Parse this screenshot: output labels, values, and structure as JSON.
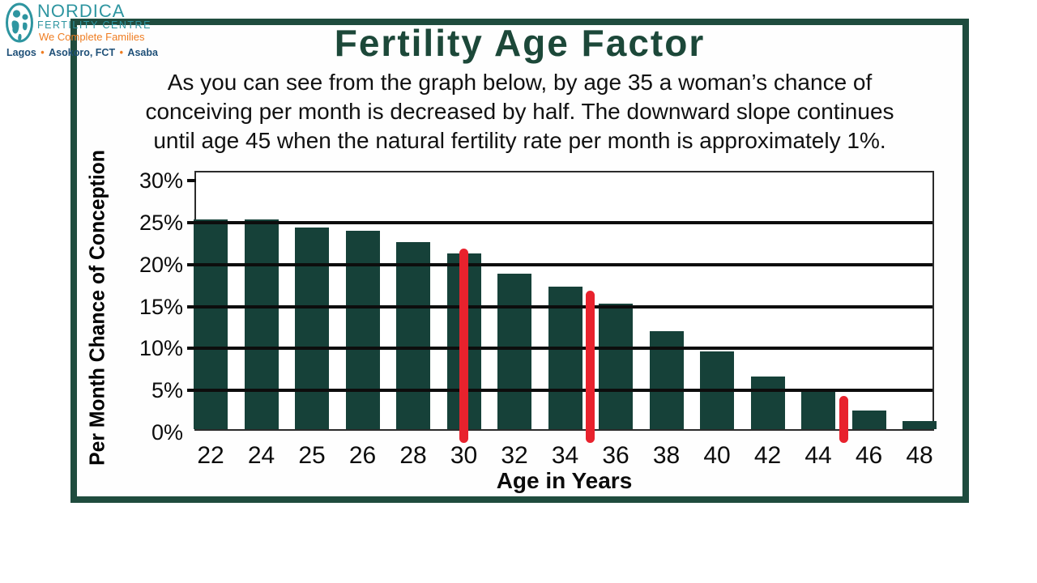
{
  "logo": {
    "name": "NORDICA",
    "subtitle": "FERTILITY CENTRE",
    "tagline": "We Complete Families",
    "locations": [
      "Lagos",
      "Asokoro, FCT",
      "Asaba"
    ],
    "colors": {
      "teal": "#2e95a0",
      "orange": "#ef7d22",
      "blue": "#1f5078"
    }
  },
  "slide": {
    "title": "Fertility Age Factor",
    "paragraph_lines": [
      "As you can see from the graph below, by age 35 a woman’s chance of",
      "conceiving per month is decreased by half. The downward slope continues",
      "until age 45 when the natural fertility rate per month is approximately 1%."
    ]
  },
  "chart_data": {
    "type": "bar",
    "title": "",
    "xlabel": "Age in Years",
    "ylabel": "Per Month Chance of Conception",
    "categories": [
      "22",
      "24",
      "25",
      "26",
      "28",
      "30",
      "32",
      "34",
      "36",
      "38",
      "40",
      "42",
      "44",
      "46",
      "48"
    ],
    "values": [
      25,
      25,
      24,
      23.7,
      22.3,
      21,
      18.5,
      17,
      15,
      11.7,
      9.3,
      6.3,
      4.5,
      2.2,
      1
    ],
    "ylim": [
      0,
      31
    ],
    "yticks": [
      0,
      5,
      10,
      15,
      20,
      25,
      30
    ],
    "gridline_ticks": [
      5,
      10,
      15,
      20,
      25
    ],
    "ytick_suffix": "%",
    "grid": "horizontal",
    "legend": "none",
    "bar_color": "#164139",
    "gridline_color": "#0d0d0d",
    "marker_color": "#e8222d",
    "markers": [
      {
        "age_label": "30",
        "index": 5,
        "value": 21.5
      },
      {
        "age_label": "35",
        "index": 7.5,
        "value": 16.5
      },
      {
        "age_label": "45",
        "index": 12.5,
        "value": 4
      }
    ]
  }
}
